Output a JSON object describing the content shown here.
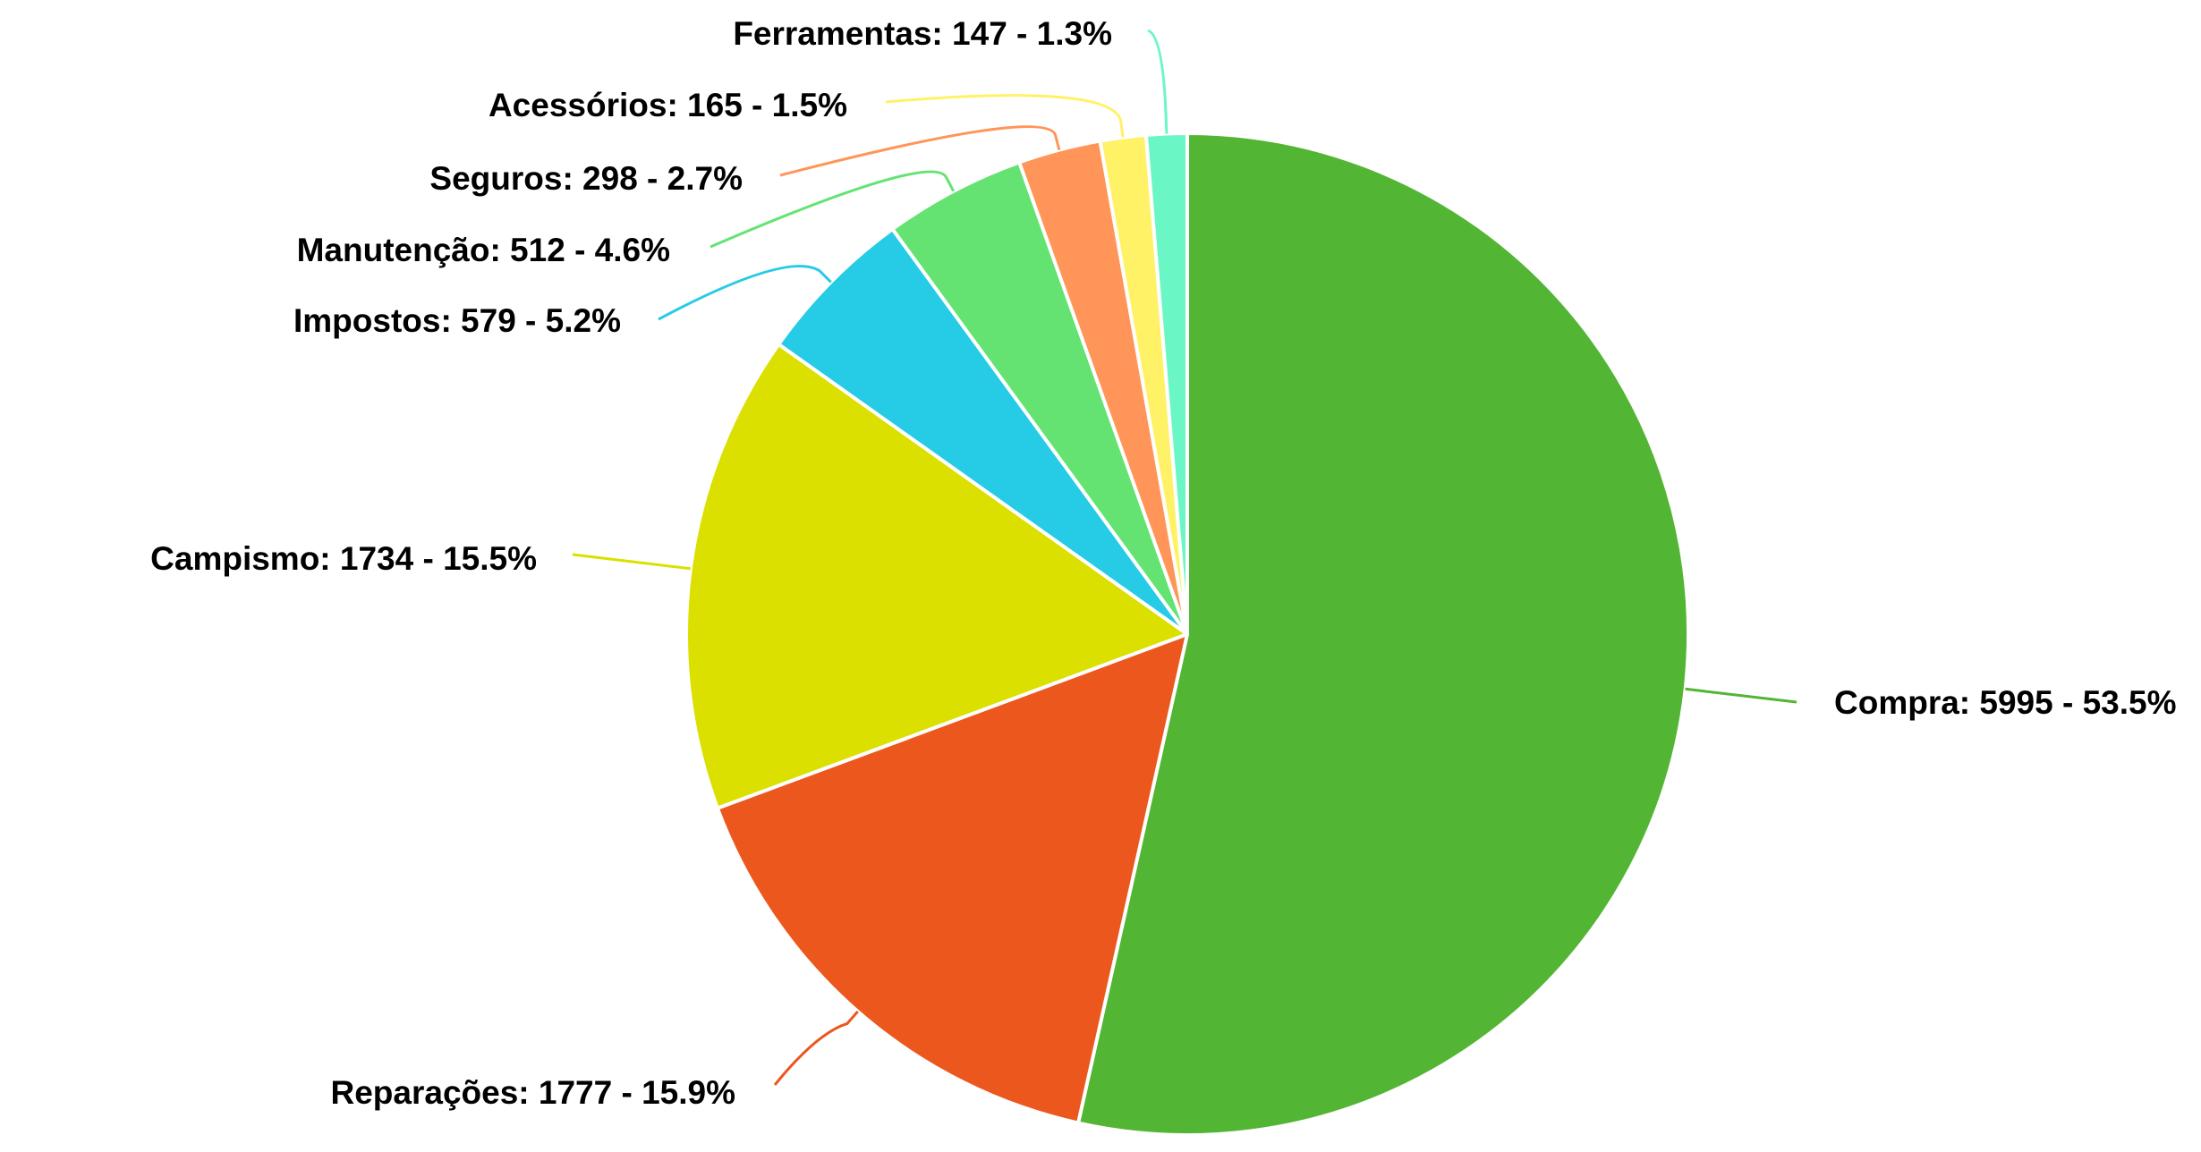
{
  "chart_data": {
    "type": "pie",
    "slices": [
      {
        "name": "Compra",
        "value": 5995,
        "percent": 53.5,
        "color": "#53b534",
        "label": "Compra: 5995 - 53.5%"
      },
      {
        "name": "Reparações",
        "value": 1777,
        "percent": 15.9,
        "color": "#ec571e",
        "label": "Reparações: 1777 - 15.9%"
      },
      {
        "name": "Campismo",
        "value": 1734,
        "percent": 15.5,
        "color": "#dbe000",
        "label": "Campismo: 1734 - 15.5%"
      },
      {
        "name": "Impostos",
        "value": 579,
        "percent": 5.2,
        "color": "#26cbe5",
        "label": "Impostos: 579 - 5.2%"
      },
      {
        "name": "Manutenção",
        "value": 512,
        "percent": 4.6,
        "color": "#64e373",
        "label": "Manutenção: 512 - 4.6%"
      },
      {
        "name": "Seguros",
        "value": 298,
        "percent": 2.7,
        "color": "#ff9558",
        "label": "Seguros: 298 - 2.7%"
      },
      {
        "name": "Acessórios",
        "value": 165,
        "percent": 1.5,
        "color": "#fff267",
        "label": "Acessórios: 165 - 1.5%"
      },
      {
        "name": "Ferramentas",
        "value": 147,
        "percent": 1.3,
        "color": "#6bf7c5",
        "label": "Ferramentas: 147 - 1.3%"
      }
    ],
    "start_angle": "12 o'clock",
    "direction": "clockwise",
    "legend": "none"
  }
}
